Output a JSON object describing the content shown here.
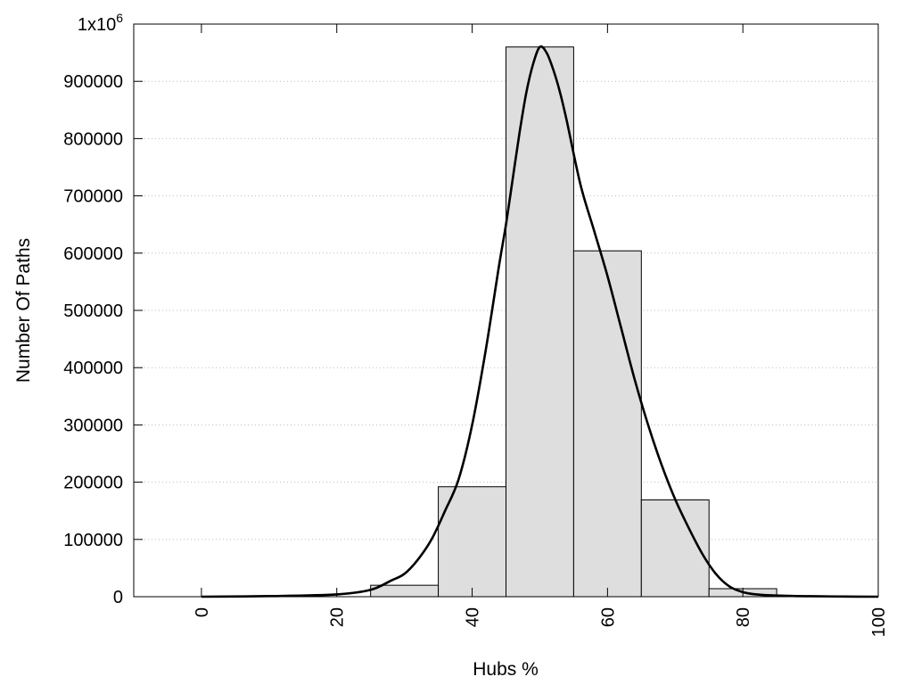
{
  "chart_data": {
    "type": "bar",
    "title": "",
    "xlabel": "Hubs %",
    "ylabel": "Number Of Paths",
    "xlim": [
      -10,
      100
    ],
    "ylim": [
      0,
      1000000
    ],
    "grid": {
      "horizontal": true,
      "vertical": false,
      "style": "dotted"
    },
    "legend": "none",
    "x_ticks": [
      "0",
      "20",
      "40",
      "60",
      "80",
      "100"
    ],
    "x_tick_values": [
      0,
      20,
      40,
      60,
      80,
      100
    ],
    "y_ticks": [
      "0",
      "100000",
      "200000",
      "300000",
      "400000",
      "500000",
      "600000",
      "700000",
      "800000",
      "900000",
      "1x10^6"
    ],
    "y_tick_values": [
      0,
      100000,
      200000,
      300000,
      400000,
      500000,
      600000,
      700000,
      800000,
      900000,
      1000000
    ],
    "bar_width": 10,
    "bars": [
      {
        "x": 30,
        "value": 20000
      },
      {
        "x": 40,
        "value": 192000
      },
      {
        "x": 50,
        "value": 960000
      },
      {
        "x": 60,
        "value": 604000
      },
      {
        "x": 70,
        "value": 169000
      },
      {
        "x": 80,
        "value": 14000
      }
    ],
    "curve": {
      "x": [
        0,
        10,
        20,
        25,
        28,
        30,
        32,
        34,
        36,
        38,
        40,
        42,
        44,
        45,
        46,
        47,
        48,
        49,
        50,
        51,
        52,
        53,
        54,
        56,
        58,
        60,
        62,
        64,
        66,
        68,
        70,
        72,
        74,
        76,
        78,
        80,
        82,
        85,
        90,
        95,
        100
      ],
      "y": [
        0,
        1000,
        4000,
        12000,
        28000,
        40000,
        65000,
        100000,
        150000,
        205000,
        300000,
        430000,
        580000,
        650000,
        730000,
        810000,
        880000,
        930000,
        960000,
        950000,
        920000,
        880000,
        830000,
        720000,
        640000,
        560000,
        470000,
        380000,
        300000,
        230000,
        170000,
        120000,
        75000,
        40000,
        18000,
        8000,
        4000,
        2000,
        800,
        300,
        0
      ]
    },
    "colors": {
      "bar_fill": "#dedede",
      "bar_stroke": "#000000",
      "curve": "#000000",
      "grid": "#bbbbbb"
    }
  }
}
